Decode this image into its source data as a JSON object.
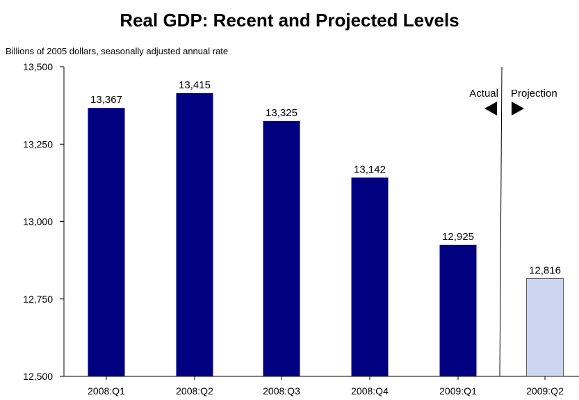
{
  "title": "Real GDP: Recent and Projected Levels",
  "unit_label": "Billions of 2005 dollars, seasonally adjusted annual rate",
  "annotations": {
    "actual": "Actual",
    "projection": "Projection"
  },
  "colors": {
    "actual_bar": "#000080",
    "projection_bar": "#ccd6f0",
    "axis": "#000000"
  },
  "chart_data": {
    "type": "bar",
    "title": "Real GDP: Recent and Projected Levels",
    "ylabel": "Billions of 2005 dollars, seasonally adjusted annual rate",
    "xlabel": "",
    "categories": [
      "2008:Q1",
      "2008:Q2",
      "2008:Q3",
      "2008:Q4",
      "2009:Q1",
      "2009:Q2"
    ],
    "values": [
      13367,
      13415,
      13325,
      13142,
      12925,
      12816
    ],
    "value_labels": [
      "13,367",
      "13,415",
      "13,325",
      "13,142",
      "12,925",
      "12,816"
    ],
    "kinds": [
      "actual",
      "actual",
      "actual",
      "actual",
      "actual",
      "projection"
    ],
    "ylim": [
      12500,
      13500
    ],
    "yticks": [
      12500,
      12750,
      13000,
      13250,
      13500
    ],
    "ytick_labels": [
      "12,500",
      "12,750",
      "13,000",
      "13,250",
      "13,500"
    ],
    "grid": false,
    "legend": "none"
  }
}
